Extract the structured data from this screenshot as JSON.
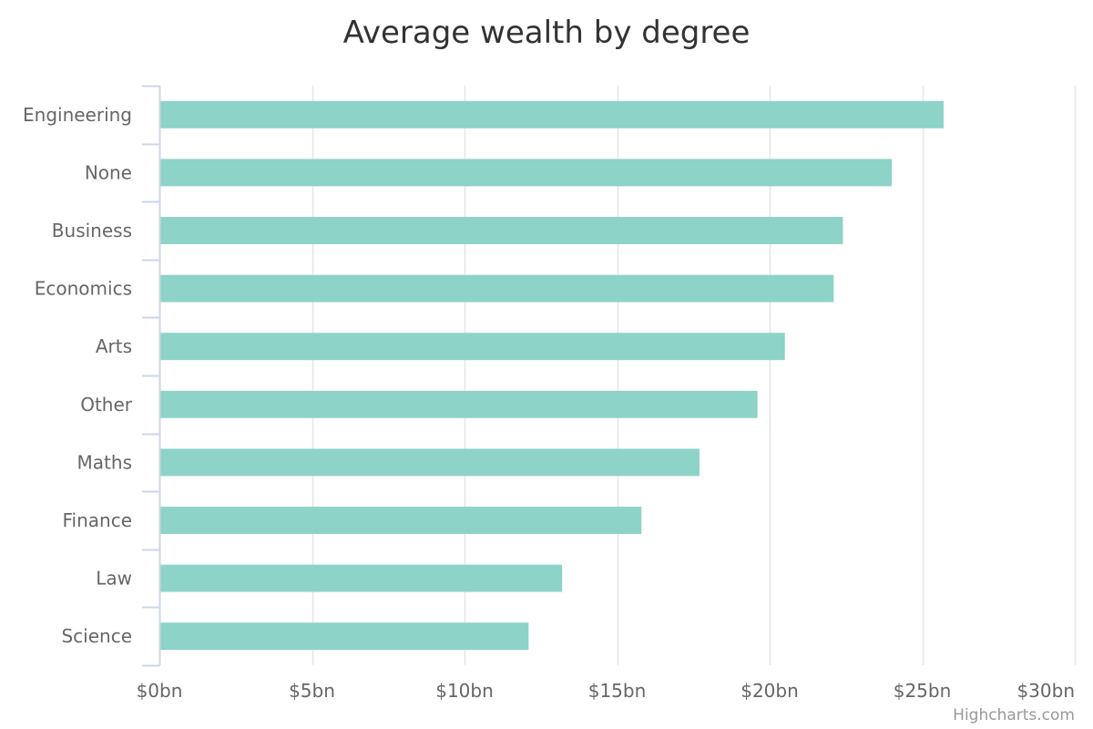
{
  "chart_data": {
    "type": "bar",
    "orientation": "horizontal",
    "title": "Average wealth by degree",
    "categories": [
      "Engineering",
      "None",
      "Business",
      "Economics",
      "Arts",
      "Other",
      "Maths",
      "Finance",
      "Law",
      "Science"
    ],
    "values": [
      25.7,
      24.0,
      22.4,
      22.1,
      20.5,
      19.6,
      17.7,
      15.8,
      13.2,
      12.1
    ],
    "xlim": [
      0,
      30
    ],
    "xticks": [
      0,
      5,
      10,
      15,
      20,
      25,
      30
    ],
    "tick_labels": [
      "$0bn",
      "$5bn",
      "$10bn",
      "$15bn",
      "$20bn",
      "$25bn",
      "$30bn"
    ],
    "grid": true,
    "bar_color": "#8dd3c7"
  },
  "credits": "Highcharts.com"
}
